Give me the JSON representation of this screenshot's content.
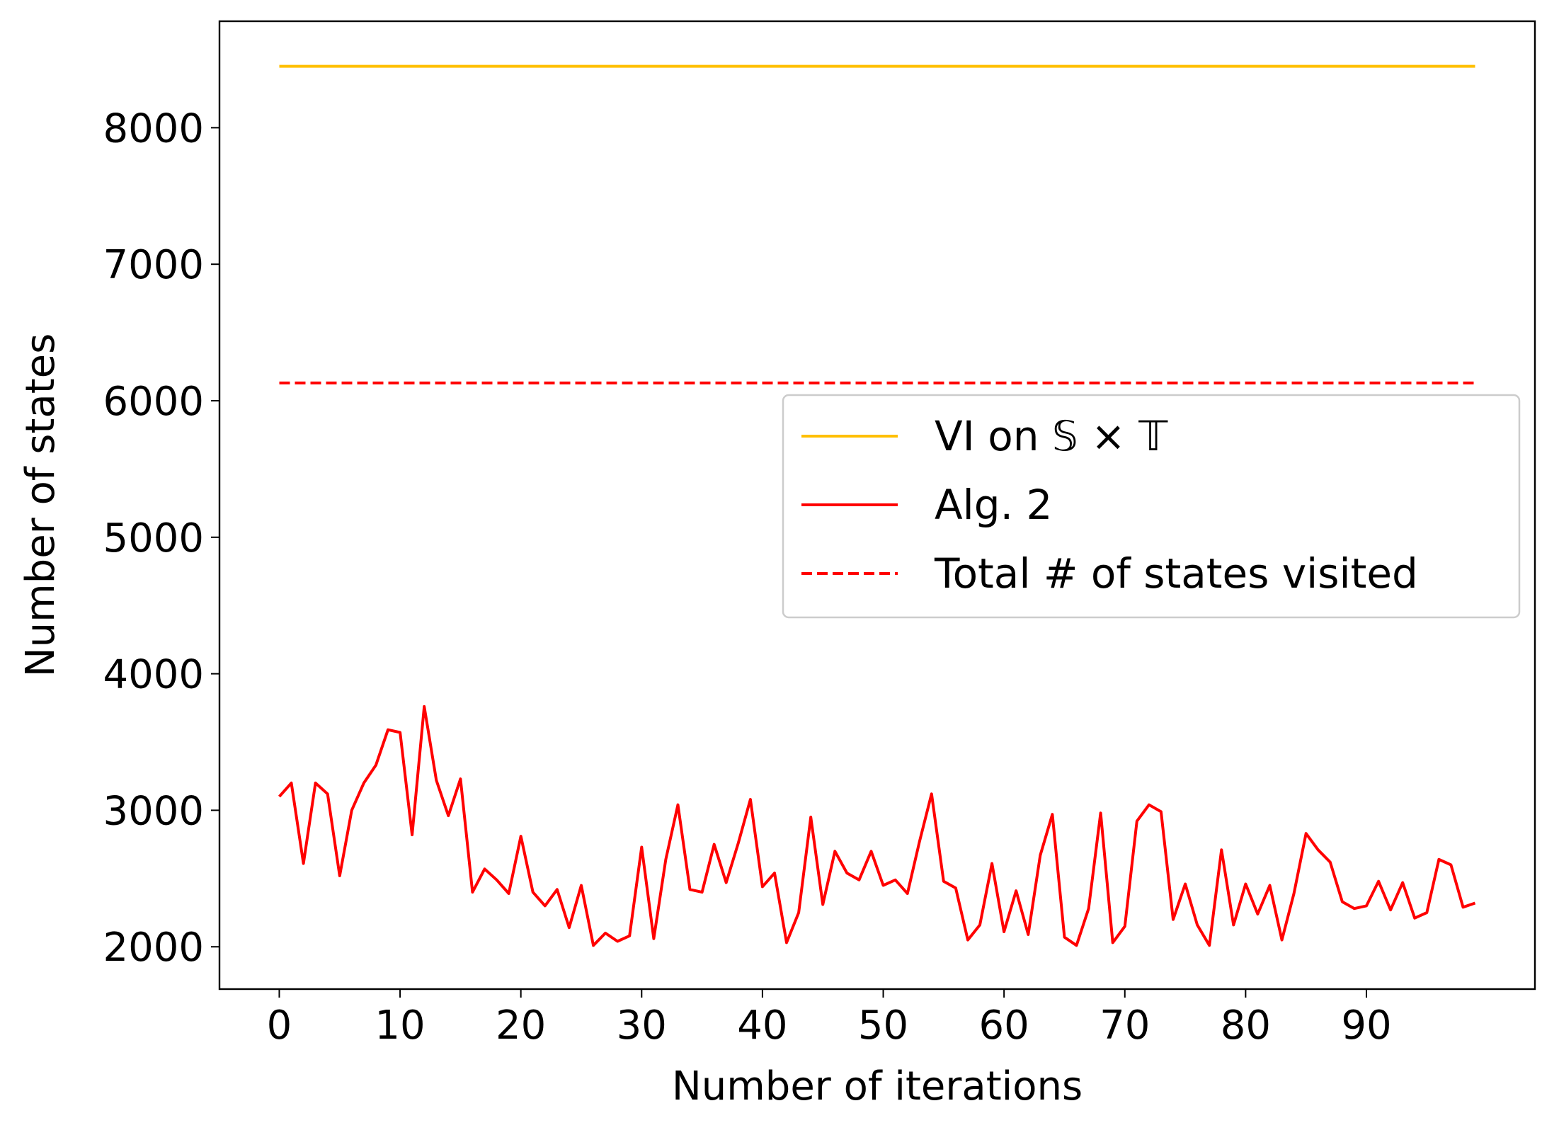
{
  "chart_data": {
    "type": "line",
    "title": "",
    "xlabel": "Number of iterations",
    "ylabel": "Number of states",
    "xlim": [
      -4.95,
      103.95
    ],
    "ylim": [
      1690,
      8780
    ],
    "xticks": [
      0,
      10,
      20,
      30,
      40,
      50,
      60,
      70,
      80,
      90
    ],
    "yticks": [
      2000,
      3000,
      4000,
      5000,
      6000,
      7000,
      8000
    ],
    "grid": false,
    "legend_position": "center-right",
    "series": [
      {
        "name": "VI on 𝕊 × 𝕋",
        "color": "#ffbf00",
        "style": "solid",
        "x": [
          0,
          99
        ],
        "y": [
          8450,
          8450
        ]
      },
      {
        "name": "Alg. 2",
        "color": "#ff0000",
        "style": "solid",
        "x": [
          0,
          1,
          2,
          3,
          4,
          5,
          6,
          7,
          8,
          9,
          10,
          11,
          12,
          13,
          14,
          15,
          16,
          17,
          18,
          19,
          20,
          21,
          22,
          23,
          24,
          25,
          26,
          27,
          28,
          29,
          30,
          31,
          32,
          33,
          34,
          35,
          36,
          37,
          38,
          39,
          40,
          41,
          42,
          43,
          44,
          45,
          46,
          47,
          48,
          49,
          50,
          51,
          52,
          53,
          54,
          55,
          56,
          57,
          58,
          59,
          60,
          61,
          62,
          63,
          64,
          65,
          66,
          67,
          68,
          69,
          70,
          71,
          72,
          73,
          74,
          75,
          76,
          77,
          78,
          79,
          80,
          81,
          82,
          83,
          84,
          85,
          86,
          87,
          88,
          89,
          90,
          91,
          92,
          93,
          94,
          95,
          96,
          97,
          98,
          99
        ],
        "y": [
          3100,
          3200,
          2610,
          3200,
          3120,
          2520,
          3000,
          3200,
          3330,
          3590,
          3570,
          2820,
          3760,
          3220,
          2960,
          3230,
          2400,
          2570,
          2490,
          2390,
          2810,
          2400,
          2300,
          2420,
          2140,
          2450,
          2010,
          2100,
          2040,
          2080,
          2730,
          2060,
          2640,
          3040,
          2420,
          2400,
          2750,
          2470,
          2760,
          3080,
          2440,
          2540,
          2030,
          2250,
          2950,
          2310,
          2700,
          2540,
          2490,
          2700,
          2450,
          2490,
          2390,
          2770,
          3120,
          2480,
          2430,
          2050,
          2160,
          2610,
          2110,
          2410,
          2090,
          2670,
          2970,
          2070,
          2010,
          2280,
          2980,
          2030,
          2150,
          2920,
          3040,
          2990,
          2200,
          2460,
          2160,
          2010,
          2710,
          2160,
          2460,
          2240,
          2450,
          2050,
          2390,
          2830,
          2710,
          2620,
          2330,
          2280,
          2300,
          2480,
          2270,
          2470,
          2210,
          2250,
          2640,
          2600,
          2290,
          2320
        ]
      },
      {
        "name": "Total # of states visited",
        "color": "#ff0000",
        "style": "dashed",
        "x": [
          0,
          99
        ],
        "y": [
          6130,
          6130
        ]
      }
    ]
  }
}
